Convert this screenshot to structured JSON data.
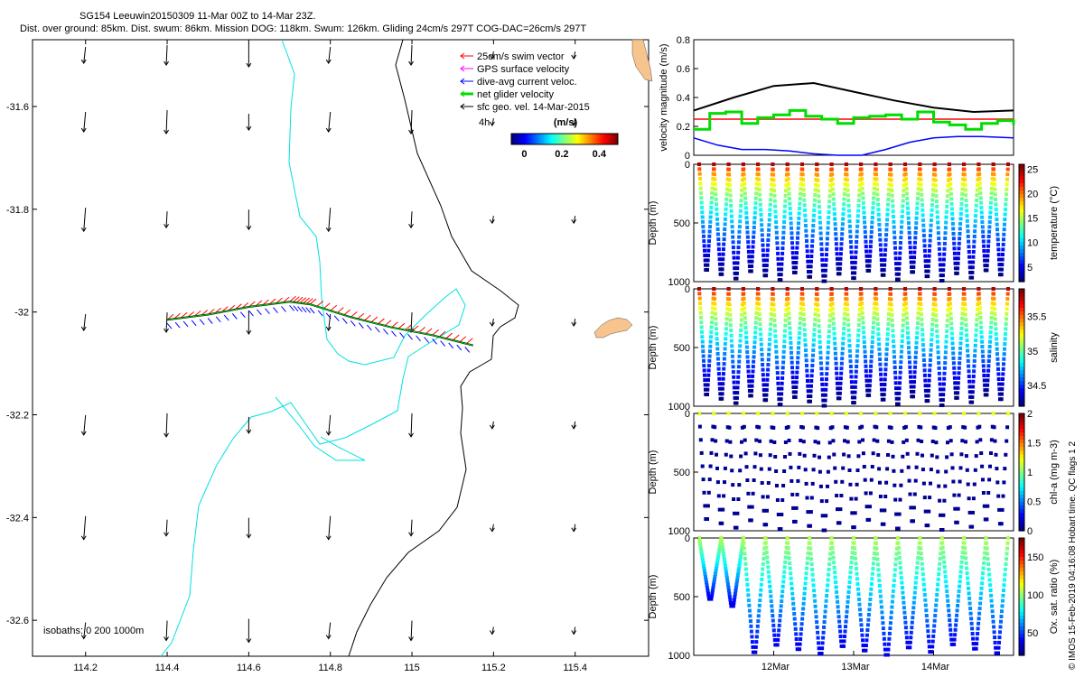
{
  "header": {
    "line1": "SG154 Leeuwin20150309 11-Mar 00Z to 14-Mar 23Z.",
    "line2": "Dist. over ground: 85km. Dist. swum: 86km. Mission DOG: 118km. Swum: 126km. Gliding 24cm/s 297T COG-DAC=26cm/s 297T"
  },
  "footer_text": "© IMOS 15-Feb-2019 04:16:08 Hobart time. QC flags 1  2",
  "chart_data": [
    {
      "type": "map",
      "xlim": [
        114.07,
        115.58
      ],
      "ylim": [
        -32.67,
        -31.47
      ],
      "x_ticks": [
        "114.2",
        "114.4",
        "114.6",
        "114.8",
        "115",
        "115.2",
        "115.4"
      ],
      "x_tick_values": [
        114.2,
        114.4,
        114.6,
        114.8,
        115.0,
        115.2,
        115.4
      ],
      "y_ticks": [
        "-31.6",
        "-31.8",
        "-32",
        "-32.2",
        "-32.4",
        "-32.6"
      ],
      "y_tick_values": [
        -31.6,
        -31.8,
        -32.0,
        -32.2,
        -32.4,
        -32.6
      ],
      "legend": [
        {
          "label": "25cm/s swim vector",
          "color": "#ff0000"
        },
        {
          "label": "GPS surface velocity",
          "color": "#ff00ff"
        },
        {
          "label": "dive-avg current veloc.",
          "color": "#0000ff"
        },
        {
          "label": "net glider velocity",
          "color": "#00dd00"
        },
        {
          "label": "sfc geo. vel. 14-Mar-2015",
          "color": "#000000"
        }
      ],
      "scale_label": "4h",
      "colorbar": {
        "title": "(m/s)",
        "ticks": [
          "0",
          "0.2",
          "0.4"
        ],
        "tick_values": [
          0,
          0.2,
          0.4
        ],
        "range": [
          -0.07,
          0.5
        ]
      },
      "isobaths_label": "isobaths: 0   200  1000m",
      "track": [
        {
          "lon": 114.4,
          "lat": -32.015
        },
        {
          "lon": 114.5,
          "lat": -32.005
        },
        {
          "lon": 114.6,
          "lat": -31.99
        },
        {
          "lon": 114.7,
          "lat": -31.98
        },
        {
          "lon": 114.75,
          "lat": -31.985
        },
        {
          "lon": 114.85,
          "lat": -32.01
        },
        {
          "lon": 114.95,
          "lat": -32.03
        },
        {
          "lon": 115.05,
          "lat": -32.045
        },
        {
          "lon": 115.15,
          "lat": -32.065
        }
      ]
    },
    {
      "type": "line",
      "ylabel": "velocity magnitude (m/s)",
      "ylim": [
        0,
        0.8
      ],
      "y_ticks": [
        "0",
        "0.2",
        "0.4",
        "0.6",
        "0.8"
      ],
      "y_tick_values": [
        0,
        0.2,
        0.4,
        0.6,
        0.8
      ],
      "x_ticks": [
        "12Mar",
        "13Mar",
        "14Mar"
      ],
      "x_tick_values": [
        1,
        2,
        3
      ],
      "xlim": [
        0,
        4
      ],
      "series": [
        {
          "color": "#000000",
          "x": [
            0,
            0.5,
            1,
            1.5,
            2,
            2.5,
            3,
            3.5,
            4
          ],
          "y": [
            0.31,
            0.4,
            0.48,
            0.5,
            0.44,
            0.38,
            0.33,
            0.3,
            0.31
          ]
        },
        {
          "color": "#ff0000",
          "x": [
            0,
            4
          ],
          "y": [
            0.25,
            0.25
          ]
        },
        {
          "color": "#0000ff",
          "x": [
            0,
            0.3,
            0.6,
            0.9,
            1.2,
            1.5,
            1.8,
            2.1,
            2.4,
            2.7,
            3.0,
            3.3,
            3.6,
            4
          ],
          "y": [
            0.12,
            0.07,
            0.04,
            0.04,
            0.03,
            0.01,
            0.0,
            0.0,
            0.04,
            0.09,
            0.12,
            0.13,
            0.13,
            0.12
          ]
        },
        {
          "color": "#00dd00",
          "x": [
            0,
            0.2,
            0.4,
            0.6,
            0.8,
            1.0,
            1.2,
            1.4,
            1.6,
            1.8,
            2.0,
            2.2,
            2.4,
            2.6,
            2.8,
            3.0,
            3.2,
            3.4,
            3.6,
            3.8,
            4
          ],
          "y": [
            0.18,
            0.29,
            0.3,
            0.22,
            0.26,
            0.28,
            0.31,
            0.27,
            0.25,
            0.22,
            0.26,
            0.27,
            0.28,
            0.25,
            0.3,
            0.23,
            0.21,
            0.18,
            0.22,
            0.24,
            0.21
          ]
        }
      ]
    },
    {
      "type": "scatter",
      "ylabel": "Depth (m)",
      "cbar_label": "temperature (°C)",
      "cbar_ticks": [
        "25",
        "20",
        "15",
        "10",
        "5"
      ],
      "cbar_tick_values": [
        25,
        20,
        15,
        10,
        5
      ],
      "cbar_range": [
        2,
        26
      ],
      "y_ticks": [
        "0",
        "500",
        "1000"
      ],
      "y_tick_values": [
        0,
        500,
        1000
      ],
      "ylim": [
        1000,
        0
      ],
      "dives": 21,
      "colormap": "jet",
      "style": "full"
    },
    {
      "type": "scatter",
      "ylabel": "Depth (m)",
      "cbar_label": "salinity",
      "cbar_ticks": [
        "35.5",
        "35",
        "34.5"
      ],
      "cbar_tick_values": [
        35.5,
        35.0,
        34.5
      ],
      "cbar_range": [
        34.2,
        35.9
      ],
      "y_ticks": [
        "0",
        "500",
        "1000"
      ],
      "y_tick_values": [
        0,
        500,
        1000
      ],
      "ylim": [
        1000,
        0
      ],
      "dives": 21,
      "colormap": "jet",
      "style": "full"
    },
    {
      "type": "scatter",
      "ylabel": "Depth (m)",
      "cbar_label": "chl-a (mg m-3)",
      "cbar_ticks": [
        "2",
        "1.5",
        "1",
        "0.5",
        "0"
      ],
      "cbar_tick_values": [
        2,
        1.5,
        1,
        0.5,
        0
      ],
      "cbar_range": [
        0,
        2
      ],
      "y_ticks": [
        "0",
        "500",
        "1000"
      ],
      "y_tick_values": [
        0,
        500,
        1000
      ],
      "ylim": [
        1000,
        0
      ],
      "dives": 21,
      "colormap": "jet",
      "style": "sparse"
    },
    {
      "type": "scatter",
      "ylabel": "Depth (m)",
      "cbar_label": "Ox. sat. ratio (%)",
      "cbar_ticks": [
        "150",
        "100",
        "50"
      ],
      "cbar_tick_values": [
        150,
        100,
        50
      ],
      "cbar_range": [
        20,
        175
      ],
      "y_ticks": [
        "0",
        "500",
        "1000"
      ],
      "y_tick_values": [
        0,
        500,
        1000
      ],
      "ylim": [
        1000,
        0
      ],
      "dives": 14,
      "colormap": "jet",
      "style": "oxygen"
    }
  ]
}
